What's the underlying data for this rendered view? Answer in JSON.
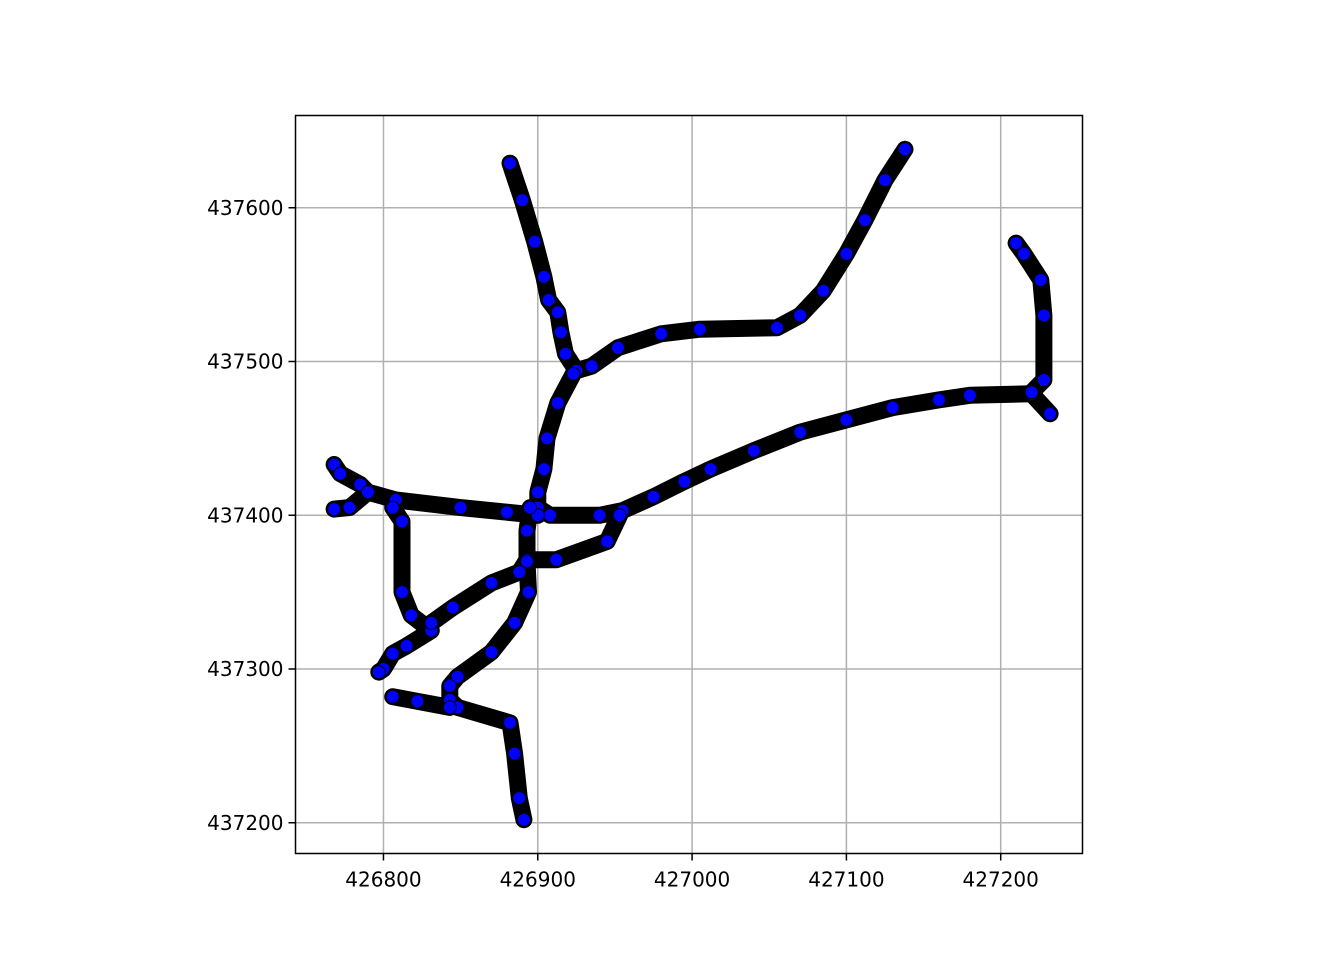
{
  "chart_data": {
    "type": "scatter",
    "title": "",
    "xlabel": "",
    "ylabel": "",
    "xlim": [
      426743,
      427253
    ],
    "ylim": [
      437180,
      437660
    ],
    "grid": true,
    "x_ticks": [
      426800,
      426900,
      427000,
      427100,
      427200
    ],
    "y_ticks": [
      437200,
      437300,
      437400,
      437500,
      437600
    ],
    "x_tick_labels": [
      "426800",
      "426900",
      "427000",
      "427100",
      "427200"
    ],
    "y_tick_labels": [
      "437200",
      "437300",
      "437400",
      "437500",
      "437600"
    ],
    "colors": {
      "track": "#000000",
      "point_fill": "#0000ff",
      "point_edge": "#000000",
      "grid": "#b0b0b0"
    },
    "series": [
      {
        "points": [
          [
            426882,
            437629
          ],
          [
            426890,
            437605
          ],
          [
            426898,
            437578
          ],
          [
            426904,
            437555
          ],
          [
            426907,
            437540
          ],
          [
            426913,
            437532
          ],
          [
            426915,
            437519
          ],
          [
            426918,
            437505
          ],
          [
            426925,
            437494
          ],
          [
            426935,
            437497
          ],
          [
            426952,
            437509
          ],
          [
            426980,
            437518
          ],
          [
            427005,
            437521
          ],
          [
            427055,
            437522
          ],
          [
            427070,
            437530
          ],
          [
            427085,
            437546
          ],
          [
            427100,
            437570
          ],
          [
            427112,
            437592
          ],
          [
            427125,
            437618
          ],
          [
            427138,
            437638
          ]
        ]
      },
      {
        "points": [
          [
            426923,
            437492
          ],
          [
            426913,
            437473
          ],
          [
            426906,
            437450
          ],
          [
            426904,
            437430
          ],
          [
            426900,
            437415
          ],
          [
            426900,
            437405
          ],
          [
            426908,
            437400
          ],
          [
            426940,
            437400
          ],
          [
            426955,
            437403
          ],
          [
            426975,
            437412
          ],
          [
            426995,
            437422
          ],
          [
            427012,
            437430
          ],
          [
            427040,
            437442
          ],
          [
            427070,
            437454
          ],
          [
            427100,
            437462
          ],
          [
            427130,
            437470
          ],
          [
            427160,
            437475
          ],
          [
            427180,
            437478
          ],
          [
            427220,
            437479
          ],
          [
            427232,
            437466
          ]
        ]
      },
      {
        "points": [
          [
            427220,
            437480
          ],
          [
            427228,
            437488
          ],
          [
            427228,
            437530
          ],
          [
            427226,
            437553
          ],
          [
            427215,
            437570
          ],
          [
            427210,
            437577
          ]
        ]
      },
      {
        "points": [
          [
            426768,
            437404
          ],
          [
            426778,
            437405
          ],
          [
            426790,
            437415
          ],
          [
            426808,
            437410
          ],
          [
            426850,
            437405
          ],
          [
            426880,
            437402
          ],
          [
            426900,
            437400
          ]
        ]
      },
      {
        "points": [
          [
            426768,
            437433
          ],
          [
            426772,
            437427
          ],
          [
            426785,
            437420
          ],
          [
            426790,
            437415
          ]
        ]
      },
      {
        "points": [
          [
            426806,
            437405
          ],
          [
            426812,
            437396
          ],
          [
            426812,
            437350
          ],
          [
            426818,
            437335
          ],
          [
            426831,
            437325
          ],
          [
            426815,
            437315
          ],
          [
            426806,
            437310
          ],
          [
            426800,
            437300
          ],
          [
            426797,
            437298
          ]
        ]
      },
      {
        "points": [
          [
            426831,
            437330
          ],
          [
            426845,
            437340
          ],
          [
            426870,
            437356
          ],
          [
            426888,
            437363
          ],
          [
            426893,
            437371
          ],
          [
            426912,
            437371
          ],
          [
            426945,
            437383
          ],
          [
            426953,
            437400
          ]
        ]
      },
      {
        "points": [
          [
            426895,
            437405
          ],
          [
            426893,
            437390
          ],
          [
            426893,
            437370
          ],
          [
            426894,
            437350
          ],
          [
            426885,
            437330
          ],
          [
            426870,
            437311
          ],
          [
            426848,
            437295
          ],
          [
            426843,
            437289
          ],
          [
            426843,
            437280
          ],
          [
            426848,
            437275
          ],
          [
            426882,
            437265
          ],
          [
            426885,
            437245
          ],
          [
            426888,
            437216
          ],
          [
            426891,
            437202
          ]
        ]
      },
      {
        "points": [
          [
            426806,
            437282
          ],
          [
            426822,
            437279
          ],
          [
            426843,
            437275
          ]
        ]
      }
    ]
  }
}
